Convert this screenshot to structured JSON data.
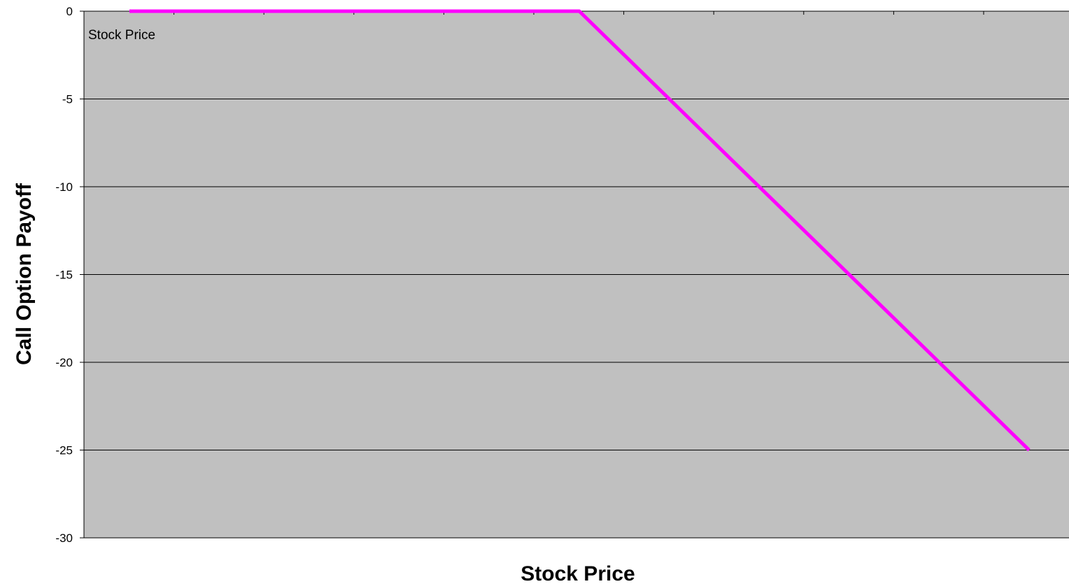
{
  "chart_data": {
    "type": "line",
    "title": "",
    "xlabel": "Stock Price",
    "ylabel": "Call Option Payoff",
    "plot_annotation": "Stock Price",
    "ylim": [
      -30,
      0
    ],
    "yticks": [
      0,
      -5,
      -10,
      -15,
      -20,
      -25,
      -30
    ],
    "x_tick_count": 11,
    "x_tick_labels_shown": false,
    "grid": "horizontal",
    "legend": "none",
    "series": [
      {
        "x": [
          1,
          6,
          11
        ],
        "values": [
          0,
          0,
          -25
        ],
        "color": "#ff00ff"
      }
    ]
  },
  "colors": {
    "plot_background": "#c0c0c0",
    "gridline": "#000000",
    "series": "#ff00ff"
  }
}
